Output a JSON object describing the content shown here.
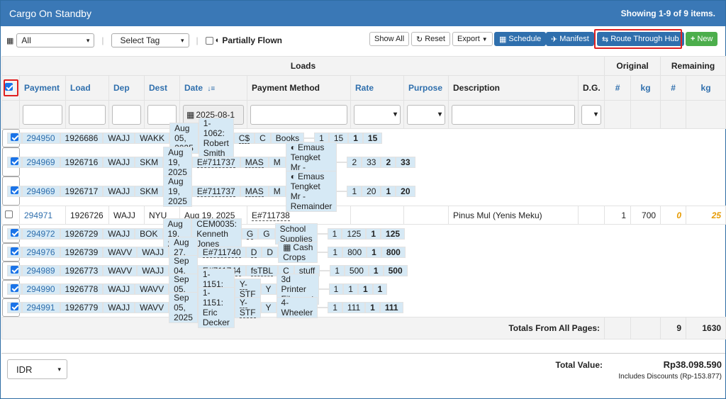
{
  "header": {
    "title": "Cargo On Standby",
    "showing": "Showing 1-9 of 9 items."
  },
  "toolbar": {
    "filter_all": "All",
    "select_tag": "Select Tag",
    "partially_flown": "Partially Flown",
    "show_all": "Show All",
    "reset": "Reset",
    "export": "Export",
    "schedule": "Schedule",
    "manifest": "Manifest",
    "route_through_hub": "Route Through Hub",
    "new": "New"
  },
  "table": {
    "group_loads": "Loads",
    "group_original": "Original",
    "group_remaining": "Remaining",
    "headers": {
      "payment": "Payment",
      "load": "Load",
      "dep": "Dep",
      "dest": "Dest",
      "date": "Date",
      "payment_method": "Payment Method",
      "rate": "Rate",
      "purpose": "Purpose",
      "description": "Description",
      "dg": "D.G.",
      "orig_num": "#",
      "orig_kg": "kg",
      "rem_num": "#",
      "rem_kg": "kg"
    },
    "date_filter": "2025-08-1",
    "rows": [
      {
        "checked": true,
        "payment": "294950",
        "load": "1926686",
        "dep": "WAJJ",
        "dest": "WAKK",
        "date": "Aug 05, 2025",
        "pm": "1-1062: Robert Smith",
        "pm_dashed": false,
        "rate": "C$",
        "purpose": "C",
        "desc": "Books",
        "desc_icon": "",
        "o_num": "1",
        "o_kg": "15",
        "r_num": "1",
        "r_kg": "15"
      },
      {
        "checked": true,
        "payment": "294969",
        "load": "1926716",
        "dep": "WAJJ",
        "dest": "SKM",
        "date": "Aug 19, 2025",
        "pm": "E#711737",
        "pm_dashed": true,
        "rate": "MAS",
        "purpose": "M",
        "desc": "Emaus Tengket Mr - Remainder",
        "desc_icon": "◐",
        "o_num": "2",
        "o_kg": "33",
        "r_num": "2",
        "r_kg": "33"
      },
      {
        "checked": true,
        "payment": "294969",
        "load": "1926717",
        "dep": "WAJJ",
        "dest": "SKM",
        "date": "Aug 19, 2025",
        "pm": "E#711737",
        "pm_dashed": true,
        "rate": "MAS",
        "purpose": "M",
        "desc": "Emaus Tengket Mr - Remainder",
        "desc_icon": "◐",
        "o_num": "1",
        "o_kg": "20",
        "r_num": "1",
        "r_kg": "20"
      },
      {
        "checked": false,
        "payment": "294971",
        "load": "1926726",
        "dep": "WAJJ",
        "dest": "NYU",
        "date": "Aug 19, 2025",
        "pm": "E#711738",
        "pm_dashed": true,
        "rate": "",
        "purpose": "",
        "desc": "Pinus Mul (Yenis Meku)",
        "desc_icon": "",
        "o_num": "1",
        "o_kg": "700",
        "r_num": "0",
        "r_kg": "25"
      },
      {
        "checked": true,
        "payment": "294972",
        "load": "1926729",
        "dep": "WAJJ",
        "dest": "BOK",
        "date": "Aug 19, 2025",
        "pm": "CEM0035: Kenneth Jones",
        "pm_dashed": false,
        "rate": "G",
        "purpose": "G",
        "desc": "School Supplies",
        "desc_icon": "",
        "o_num": "1",
        "o_kg": "125",
        "r_num": "1",
        "r_kg": "125"
      },
      {
        "checked": true,
        "payment": "294976",
        "load": "1926739",
        "dep": "WAVV",
        "dest": "WAJJ",
        "date": "Aug 27, 2025",
        "pm": "E#711740",
        "pm_dashed": true,
        "rate": "D",
        "purpose": "D",
        "desc": "Cash Crops",
        "desc_icon": "▦",
        "o_num": "1",
        "o_kg": "800",
        "r_num": "1",
        "r_kg": "800"
      },
      {
        "checked": true,
        "payment": "294989",
        "load": "1926773",
        "dep": "WAVV",
        "dest": "WAJJ",
        "date": "Sep 04, 2025",
        "pm": "E#711744",
        "pm_dashed": true,
        "rate": "fsTBL",
        "purpose": "C",
        "desc": "stuff",
        "desc_icon": "",
        "o_num": "1",
        "o_kg": "500",
        "r_num": "1",
        "r_kg": "500"
      },
      {
        "checked": true,
        "payment": "294990",
        "load": "1926778",
        "dep": "WAJJ",
        "dest": "WAVV",
        "date": "Sep 05, 2025",
        "pm": "1-1151: Eric Decker",
        "pm_dashed": false,
        "rate": "Y-STF",
        "purpose": "Y",
        "desc": "3d Printer Filament",
        "desc_icon": "",
        "o_num": "1",
        "o_kg": "1",
        "r_num": "1",
        "r_kg": "1"
      },
      {
        "checked": true,
        "payment": "294991",
        "load": "1926779",
        "dep": "WAJJ",
        "dest": "WAVV",
        "date": "Sep 05, 2025",
        "pm": "1-1151: Eric Decker",
        "pm_dashed": false,
        "rate": "Y-STF",
        "purpose": "Y",
        "desc": "4-Wheeler",
        "desc_icon": "",
        "o_num": "1",
        "o_kg": "111",
        "r_num": "1",
        "r_kg": "111"
      }
    ],
    "totals_label": "Totals From All Pages:",
    "totals_rem_num": "9",
    "totals_rem_kg": "1630"
  },
  "footer": {
    "currency": "IDR",
    "total_value_label": "Total Value:",
    "total_value": "Rp38.098.590",
    "discount_note": "Includes Discounts (Rp-153.877)"
  },
  "colors": {
    "header": "#3a78b6",
    "selected_row": "#d6e9f5",
    "highlight": "#e02020",
    "link": "#2f6fad"
  }
}
